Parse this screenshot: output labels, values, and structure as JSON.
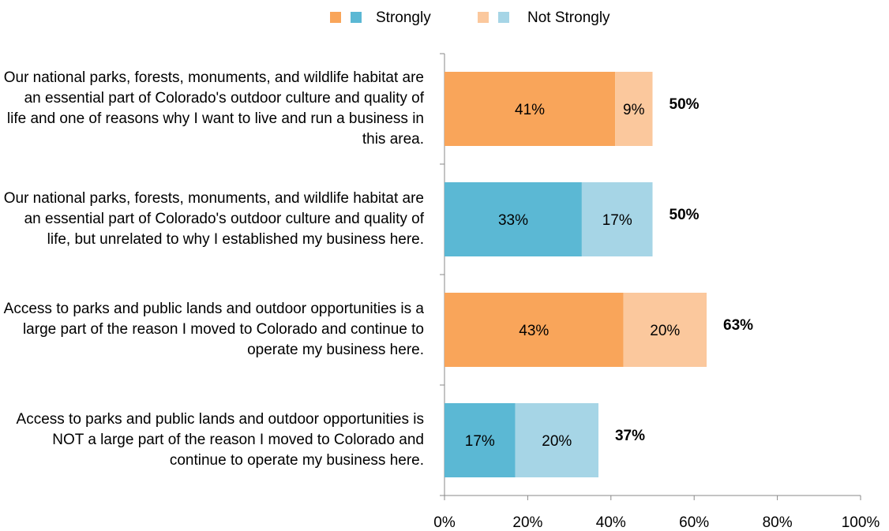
{
  "chart_data": {
    "type": "stacked_barh",
    "categories": [
      "Our national parks, forests, monuments, and wildlife habitat are an essential part of Colorado's outdoor culture and quality of life and one of reasons why I want to live and run a business in this area.",
      "Our national parks, forests, monuments, and wildlife habitat are an essential part of Colorado's outdoor culture and quality of life, but unrelated to why I established my business here.",
      "Access to parks and public lands and outdoor opportunities is a large part of the reason I moved to Colorado and continue to operate my business here.",
      "Access to parks and public lands and outdoor opportunities is NOT a large part of the reason I moved to Colorado and continue to operate my business here."
    ],
    "series": [
      {
        "name": "Strongly",
        "colors": [
          "#f9a55a",
          "#5bb8d4",
          "#f9a55a",
          "#5bb8d4"
        ],
        "values": [
          41,
          33,
          43,
          17
        ],
        "value_labels": [
          "41%",
          "33%",
          "43%",
          "17%"
        ]
      },
      {
        "name": "Not Strongly",
        "colors": [
          "#fbc89d",
          "#a6d5e6",
          "#fbc89d",
          "#a6d5e6"
        ],
        "values": [
          9,
          17,
          20,
          20
        ],
        "value_labels": [
          "9%",
          "17%",
          "20%",
          "20%"
        ]
      }
    ],
    "totals": [
      50,
      50,
      63,
      37
    ],
    "total_labels": [
      "50%",
      "50%",
      "63%",
      "37%"
    ],
    "xlim": [
      0,
      100
    ],
    "xticks": [
      {
        "value": 0,
        "label": "0%"
      },
      {
        "value": 20,
        "label": "20%"
      },
      {
        "value": 40,
        "label": "40%"
      },
      {
        "value": 60,
        "label": "60%"
      },
      {
        "value": 80,
        "label": "80%"
      },
      {
        "value": 100,
        "label": "100%"
      }
    ],
    "legend": "top"
  }
}
